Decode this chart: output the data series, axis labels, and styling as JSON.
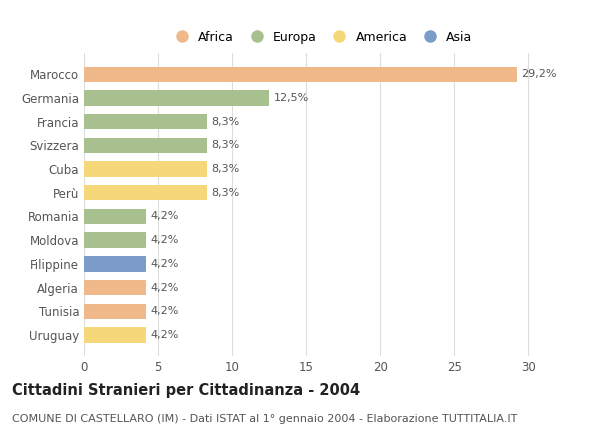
{
  "categories": [
    "Marocco",
    "Germania",
    "Francia",
    "Svizzera",
    "Cuba",
    "Perù",
    "Romania",
    "Moldova",
    "Filippine",
    "Algeria",
    "Tunisia",
    "Uruguay"
  ],
  "values": [
    29.2,
    12.5,
    8.3,
    8.3,
    8.3,
    8.3,
    4.2,
    4.2,
    4.2,
    4.2,
    4.2,
    4.2
  ],
  "labels": [
    "29,2%",
    "12,5%",
    "8,3%",
    "8,3%",
    "8,3%",
    "8,3%",
    "4,2%",
    "4,2%",
    "4,2%",
    "4,2%",
    "4,2%",
    "4,2%"
  ],
  "bar_colors": [
    "#f0b989",
    "#a8bf8e",
    "#a8bf8e",
    "#a8bf8e",
    "#f5d87a",
    "#f5d87a",
    "#a8bf8e",
    "#a8bf8e",
    "#7b9bc8",
    "#f0b989",
    "#f0b989",
    "#f5d87a"
  ],
  "legend_labels": [
    "Africa",
    "Europa",
    "America",
    "Asia"
  ],
  "legend_colors": [
    "#f0b989",
    "#a8bf8e",
    "#f5d87a",
    "#7b9bc8"
  ],
  "title": "Cittadini Stranieri per Cittadinanza - 2004",
  "subtitle": "COMUNE DI CASTELLARO (IM) - Dati ISTAT al 1° gennaio 2004 - Elaborazione TUTTITALIA.IT",
  "xlim": [
    0,
    32
  ],
  "xticks": [
    0,
    5,
    10,
    15,
    20,
    25,
    30
  ],
  "background_color": "#ffffff",
  "grid_color": "#dddddd",
  "title_fontsize": 10.5,
  "subtitle_fontsize": 8,
  "label_fontsize": 8,
  "tick_fontsize": 8.5,
  "legend_fontsize": 9
}
